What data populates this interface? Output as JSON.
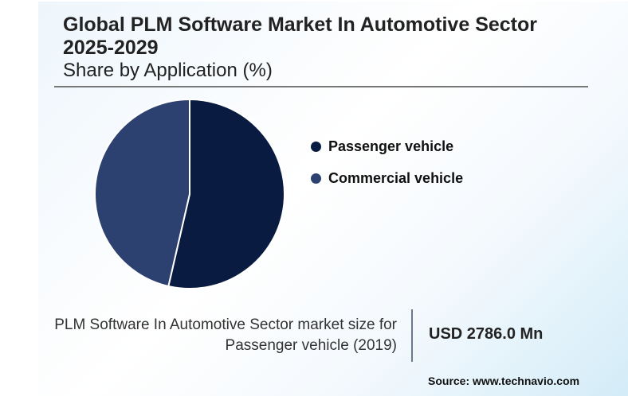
{
  "header": {
    "title": "Global PLM Software Market In Automotive Sector 2025-2029",
    "subtitle": "Share by Application (%)"
  },
  "chart_data": {
    "type": "pie",
    "title": "Global PLM Software Market In Automotive Sector 2025-2029",
    "subtitle": "Share by Application (%)",
    "categories": [
      "Passenger vehicle",
      "Commercial vehicle"
    ],
    "values": [
      53.6,
      46.4
    ],
    "colors": [
      "#0a1b42",
      "#2d4170"
    ],
    "legend_position": "right"
  },
  "legend": {
    "items": [
      {
        "label": "Passenger vehicle",
        "color": "#0a1b42"
      },
      {
        "label": "Commercial vehicle",
        "color": "#2d4170"
      }
    ]
  },
  "stat": {
    "label": "PLM Software In Automotive Sector market size for Passenger vehicle (2019)",
    "value": "USD 2786.0 Mn"
  },
  "source": "Source: www.technavio.com"
}
